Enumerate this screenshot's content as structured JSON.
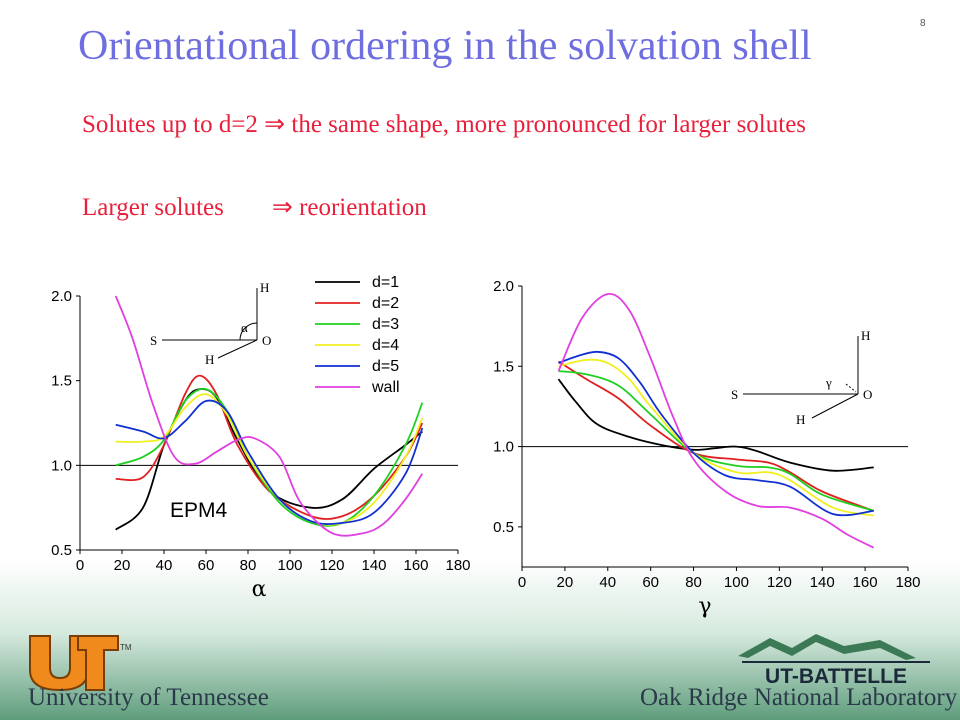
{
  "slide_number": "8",
  "title": "Orientational ordering in the solvation shell",
  "bullets": [
    {
      "text": "Solutes up to d=2",
      "arrow": "⇒",
      "rest": "the same shape, more pronounced for larger solutes"
    },
    {
      "text": "Larger solutes",
      "arrow": "⇒",
      "rest": "reorientation"
    }
  ],
  "footer": {
    "left": "University of Tennessee",
    "logo_left": "UT",
    "tm": "TM",
    "logo_right": "UT-BATTELLE",
    "right": "Oak Ridge National Laboratory"
  },
  "colors": {
    "title": "#6e6ee0",
    "bullets": "#e8203c"
  },
  "chart_data": [
    {
      "type": "line",
      "xlabel": "α",
      "ylabel": "",
      "xlim": [
        0,
        180
      ],
      "ylim": [
        0.5,
        2.0
      ],
      "xticks": [
        0,
        20,
        40,
        60,
        80,
        100,
        120,
        140,
        160,
        180
      ],
      "yticks": [
        0.5,
        1.0,
        1.5,
        2.0
      ],
      "reference_line": 1.0,
      "annotation": "EPM4",
      "diagram_labels": {
        "s": "S",
        "h_top": "H",
        "h_bottom": "H",
        "o": "O",
        "angle": "α"
      },
      "legend": {
        "position": "top-right"
      },
      "series": [
        {
          "name": "d=1",
          "color": "#000000",
          "x": [
            17,
            30,
            40,
            50,
            57,
            65,
            75,
            90,
            110,
            125,
            140,
            155,
            163
          ],
          "y": [
            0.62,
            0.75,
            1.12,
            1.38,
            1.45,
            1.4,
            1.15,
            0.85,
            0.75,
            0.8,
            0.98,
            1.12,
            1.2
          ]
        },
        {
          "name": "d=2",
          "color": "#e02020",
          "x": [
            17,
            30,
            40,
            50,
            57,
            65,
            75,
            90,
            110,
            125,
            140,
            155,
            163
          ],
          "y": [
            0.92,
            0.93,
            1.12,
            1.42,
            1.53,
            1.42,
            1.12,
            0.85,
            0.7,
            0.7,
            0.82,
            1.05,
            1.25
          ]
        },
        {
          "name": "d=3",
          "color": "#20d020",
          "x": [
            17,
            30,
            40,
            50,
            60,
            70,
            80,
            95,
            110,
            125,
            140,
            155,
            163
          ],
          "y": [
            1.0,
            1.05,
            1.15,
            1.38,
            1.45,
            1.32,
            1.05,
            0.78,
            0.66,
            0.66,
            0.82,
            1.12,
            1.37
          ]
        },
        {
          "name": "d=4",
          "color": "#f0f020",
          "x": [
            17,
            30,
            40,
            50,
            60,
            70,
            80,
            95,
            110,
            125,
            140,
            155,
            163
          ],
          "y": [
            1.14,
            1.14,
            1.17,
            1.34,
            1.42,
            1.3,
            1.05,
            0.8,
            0.67,
            0.66,
            0.78,
            1.05,
            1.28
          ]
        },
        {
          "name": "d=5",
          "color": "#1030d0",
          "x": [
            17,
            30,
            40,
            50,
            60,
            70,
            80,
            95,
            110,
            125,
            140,
            155,
            163
          ],
          "y": [
            1.24,
            1.2,
            1.16,
            1.26,
            1.38,
            1.32,
            1.08,
            0.8,
            0.67,
            0.66,
            0.72,
            0.95,
            1.22
          ]
        },
        {
          "name": "wall",
          "color": "#e040e0",
          "x": [
            17,
            25,
            35,
            45,
            55,
            65,
            75,
            83,
            95,
            105,
            120,
            135,
            145,
            155,
            163
          ],
          "y": [
            2.0,
            1.75,
            1.35,
            1.05,
            1.01,
            1.08,
            1.15,
            1.16,
            1.05,
            0.78,
            0.6,
            0.6,
            0.66,
            0.8,
            0.95
          ]
        }
      ]
    },
    {
      "type": "line",
      "xlabel": "γ",
      "ylabel": "",
      "xlim": [
        0,
        180
      ],
      "ylim": [
        0.25,
        2.0
      ],
      "xticks": [
        0,
        20,
        40,
        60,
        80,
        100,
        120,
        140,
        160,
        180
      ],
      "yticks": [
        0.5,
        1.0,
        1.5,
        2.0
      ],
      "reference_line": 1.0,
      "diagram_labels": {
        "s": "S",
        "h_top": "H",
        "h_bottom": "H",
        "o": "O",
        "angle": "γ"
      },
      "series": [
        {
          "name": "d=1",
          "color": "#000000",
          "x": [
            17,
            25,
            35,
            50,
            65,
            80,
            90,
            100,
            110,
            125,
            145,
            164
          ],
          "y": [
            1.42,
            1.28,
            1.14,
            1.06,
            1.01,
            0.98,
            0.99,
            1.0,
            0.97,
            0.9,
            0.85,
            0.87
          ]
        },
        {
          "name": "d=2",
          "color": "#e02020",
          "x": [
            17,
            30,
            45,
            60,
            80,
            100,
            115,
            125,
            140,
            164
          ],
          "y": [
            1.53,
            1.42,
            1.3,
            1.13,
            0.96,
            0.92,
            0.9,
            0.84,
            0.72,
            0.6
          ]
        },
        {
          "name": "d=3",
          "color": "#20d020",
          "x": [
            17,
            30,
            45,
            60,
            80,
            100,
            115,
            125,
            140,
            164
          ],
          "y": [
            1.47,
            1.45,
            1.38,
            1.2,
            0.96,
            0.88,
            0.87,
            0.83,
            0.7,
            0.6
          ]
        },
        {
          "name": "d=4",
          "color": "#f0f020",
          "x": [
            17,
            30,
            40,
            50,
            60,
            80,
            100,
            115,
            125,
            145,
            164
          ],
          "y": [
            1.5,
            1.54,
            1.52,
            1.42,
            1.25,
            0.96,
            0.84,
            0.84,
            0.79,
            0.62,
            0.57
          ]
        },
        {
          "name": "d=5",
          "color": "#1030d0",
          "x": [
            17,
            25,
            35,
            45,
            55,
            65,
            80,
            95,
            110,
            125,
            145,
            164
          ],
          "y": [
            1.52,
            1.56,
            1.59,
            1.55,
            1.4,
            1.2,
            0.96,
            0.82,
            0.79,
            0.75,
            0.58,
            0.6
          ]
        },
        {
          "name": "wall",
          "color": "#e040e0",
          "x": [
            17,
            28,
            40,
            50,
            60,
            70,
            80,
            95,
            110,
            125,
            140,
            152,
            164
          ],
          "y": [
            1.47,
            1.8,
            1.95,
            1.85,
            1.55,
            1.2,
            0.92,
            0.72,
            0.63,
            0.62,
            0.55,
            0.45,
            0.37
          ]
        }
      ]
    }
  ]
}
